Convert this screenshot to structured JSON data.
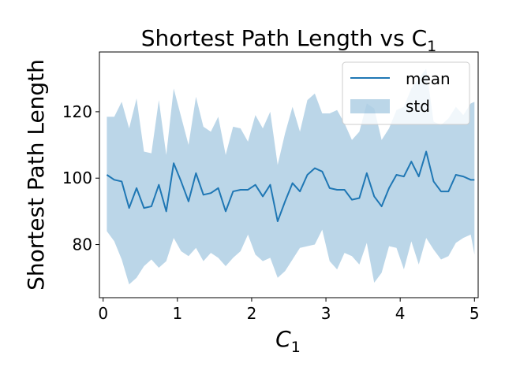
{
  "chart_data": {
    "type": "line",
    "title": "Shortest Path Length vs C",
    "title_subscript": "1",
    "xlabel": "C",
    "xlabel_subscript": "1",
    "ylabel": "Shortest Path Length",
    "xlim": [
      -0.05,
      5.05
    ],
    "ylim": [
      64,
      138
    ],
    "xticks": [
      0,
      1,
      2,
      3,
      4,
      5
    ],
    "xtick_labels": [
      "0",
      "1",
      "2",
      "3",
      "4",
      "5"
    ],
    "yticks": [
      80,
      100,
      120
    ],
    "ytick_labels": [
      "80",
      "100",
      "120"
    ],
    "grid": false,
    "legend_position": "upper right",
    "colors": {
      "mean_line": "#1f77b4",
      "std_band": "#1f77b4"
    },
    "series": [
      {
        "name": "mean",
        "kind": "line",
        "x": [
          0.05,
          0.15,
          0.25,
          0.35,
          0.45,
          0.55,
          0.65,
          0.75,
          0.85,
          0.95,
          1.05,
          1.15,
          1.25,
          1.35,
          1.45,
          1.55,
          1.65,
          1.75,
          1.85,
          1.95,
          2.05,
          2.15,
          2.25,
          2.35,
          2.45,
          2.55,
          2.65,
          2.75,
          2.85,
          2.95,
          3.05,
          3.15,
          3.25,
          3.35,
          3.45,
          3.55,
          3.65,
          3.75,
          3.85,
          3.95,
          4.05,
          4.15,
          4.25,
          4.35,
          4.45,
          4.55,
          4.65,
          4.75,
          4.85,
          4.95,
          5.0
        ],
        "values": [
          101,
          99.5,
          99,
          91,
          97,
          91,
          91.5,
          98,
          90,
          104.5,
          99,
          93,
          101.5,
          95,
          95.5,
          97,
          90,
          96,
          96.5,
          96.5,
          98,
          94.5,
          98,
          87,
          93,
          98.5,
          96,
          101,
          103,
          102,
          97,
          96.5,
          96.5,
          93.5,
          94,
          101.5,
          94.5,
          91.5,
          97,
          101,
          100.5,
          105,
          100.5,
          108,
          99,
          96,
          96,
          101,
          100.5,
          99.5,
          99.5
        ]
      },
      {
        "name": "std",
        "kind": "band",
        "x": [
          0.05,
          0.15,
          0.25,
          0.35,
          0.45,
          0.55,
          0.65,
          0.75,
          0.85,
          0.95,
          1.05,
          1.15,
          1.25,
          1.35,
          1.45,
          1.55,
          1.65,
          1.75,
          1.85,
          1.95,
          2.05,
          2.15,
          2.25,
          2.35,
          2.45,
          2.55,
          2.65,
          2.75,
          2.85,
          2.95,
          3.05,
          3.15,
          3.25,
          3.35,
          3.45,
          3.55,
          3.65,
          3.75,
          3.85,
          3.95,
          4.05,
          4.15,
          4.25,
          4.35,
          4.45,
          4.55,
          4.65,
          4.75,
          4.85,
          4.95,
          5.0
        ],
        "upper": [
          118.5,
          118.5,
          123,
          115,
          124,
          108,
          107.5,
          123.5,
          107,
          127,
          118.5,
          110,
          124.5,
          115.5,
          114,
          118.5,
          107,
          115.5,
          115,
          111,
          119,
          115,
          120,
          104,
          113.5,
          121.5,
          114,
          123.5,
          125.5,
          119.5,
          119.5,
          120.5,
          116.5,
          111.5,
          114,
          122.5,
          121,
          111.5,
          115,
          120.5,
          121.5,
          127,
          130,
          133,
          117,
          116,
          118,
          121.5,
          119,
          122.5,
          123
        ],
        "lower": [
          84,
          81,
          75.5,
          68,
          70,
          73.5,
          75.5,
          73,
          75,
          82,
          78,
          76.5,
          79,
          75,
          77.5,
          76,
          73.5,
          76,
          78,
          83,
          77,
          75,
          76,
          70,
          72,
          75.5,
          79,
          79.5,
          80,
          84.5,
          75,
          72.5,
          77.5,
          76.5,
          74,
          80.5,
          68.5,
          71.5,
          79.5,
          79,
          72.5,
          81,
          74,
          82,
          78.5,
          75.5,
          76.5,
          80.5,
          82,
          83,
          77
        ]
      }
    ]
  }
}
